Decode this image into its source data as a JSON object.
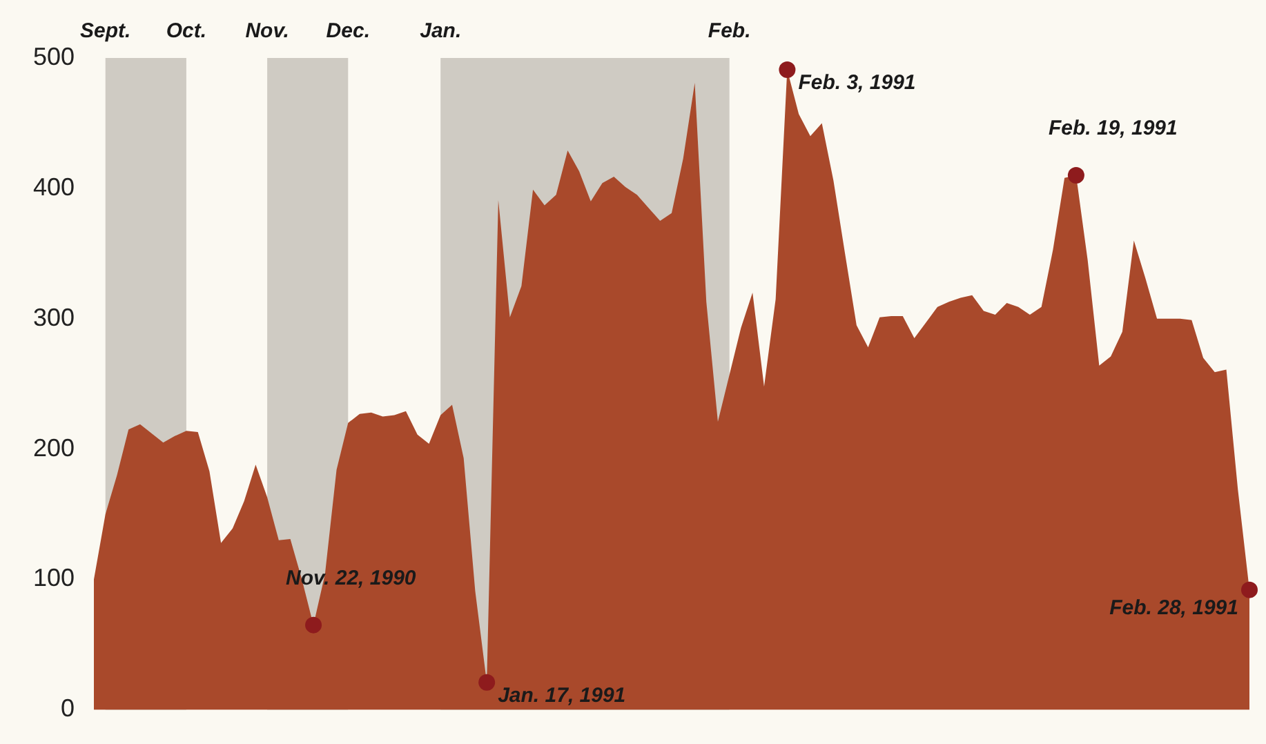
{
  "chart_data": {
    "type": "area",
    "grid": false,
    "legend": false,
    "ylim": [
      0,
      500
    ],
    "yticks": [
      0,
      100,
      200,
      300,
      400,
      500
    ],
    "categories": [
      null,
      "Sept.",
      null,
      null,
      null,
      null,
      null,
      null,
      "Oct.",
      null,
      null,
      null,
      null,
      null,
      null,
      "Nov.",
      null,
      null,
      null,
      null,
      null,
      null,
      "Dec.",
      null,
      null,
      null,
      null,
      null,
      null,
      null,
      "Jan.",
      null,
      null,
      null,
      null,
      null,
      null,
      null,
      null,
      null,
      null,
      null,
      null,
      null,
      null,
      null,
      null,
      null,
      null,
      null,
      null,
      null,
      null,
      null,
      null,
      "Feb.",
      null,
      null,
      null,
      null,
      null,
      null,
      null,
      null,
      null,
      null,
      null,
      null,
      null,
      null,
      null,
      null,
      null,
      null,
      null,
      null,
      null,
      null,
      null,
      null,
      null,
      null,
      null,
      null,
      null,
      null,
      null,
      null,
      null,
      null,
      null,
      null,
      null,
      null,
      null,
      null,
      null,
      null,
      null,
      null,
      null
    ],
    "bands": [
      {
        "axis": "x",
        "from": "Sept.",
        "to": "Oct.",
        "color": "#cfcbc3"
      },
      {
        "axis": "x",
        "from": "Nov.",
        "to": "Dec.",
        "color": "#cfcbc3"
      },
      {
        "axis": "x",
        "from": "Jan.",
        "to": "Feb.",
        "color": "#cfcbc3"
      }
    ],
    "series": [
      {
        "color": "#a9492b",
        "values": [
          100,
          150,
          180,
          215,
          219,
          212,
          205,
          210,
          214,
          213,
          183,
          128,
          139,
          160,
          188,
          163,
          130,
          131,
          100,
          65,
          104,
          184,
          220,
          227,
          228,
          225,
          226,
          229,
          211,
          204,
          226,
          234,
          193,
          91,
          21,
          391,
          301,
          325,
          399,
          387,
          395,
          429,
          413,
          390,
          404,
          409,
          401,
          395,
          385,
          375,
          381,
          423,
          481,
          313,
          221,
          257,
          293,
          320,
          248,
          315,
          491,
          457,
          440,
          450,
          406,
          350,
          295,
          278,
          301,
          302,
          302,
          285,
          297,
          309,
          313,
          316,
          318,
          306,
          303,
          312,
          309,
          303,
          309,
          353,
          408,
          410,
          345,
          264,
          271,
          290,
          360,
          331,
          300,
          300,
          300,
          299,
          270,
          259,
          261,
          169,
          92
        ]
      },
      {
        "type": "scatter",
        "color": "#8e1b1d",
        "values": [
          null,
          null,
          null,
          null,
          null,
          null,
          null,
          null,
          null,
          null,
          null,
          null,
          null,
          null,
          null,
          null,
          null,
          null,
          null,
          65,
          null,
          null,
          null,
          null,
          null,
          null,
          null,
          null,
          null,
          null,
          null,
          null,
          null,
          null,
          21,
          null,
          null,
          null,
          null,
          null,
          null,
          null,
          null,
          null,
          null,
          null,
          null,
          null,
          null,
          null,
          null,
          null,
          null,
          null,
          null,
          null,
          null,
          null,
          null,
          null,
          491,
          null,
          null,
          null,
          null,
          null,
          null,
          null,
          null,
          null,
          null,
          null,
          null,
          null,
          null,
          null,
          null,
          null,
          null,
          null,
          null,
          null,
          null,
          null,
          null,
          410,
          null,
          null,
          null,
          null,
          null,
          null,
          null,
          null,
          null,
          null,
          null,
          null,
          null,
          null,
          92
        ],
        "value_labels": [
          null,
          null,
          null,
          null,
          null,
          null,
          null,
          null,
          null,
          null,
          null,
          null,
          null,
          null,
          null,
          null,
          null,
          null,
          null,
          "Nov. 22, 1990",
          null,
          null,
          null,
          null,
          null,
          null,
          null,
          null,
          null,
          null,
          null,
          null,
          null,
          null,
          "Jan. 17, 1991",
          null,
          null,
          null,
          null,
          null,
          null,
          null,
          null,
          null,
          null,
          null,
          null,
          null,
          null,
          null,
          null,
          null,
          null,
          null,
          null,
          null,
          null,
          null,
          null,
          null,
          "Feb. 3, 1991",
          null,
          null,
          null,
          null,
          null,
          null,
          null,
          null,
          null,
          null,
          null,
          null,
          null,
          null,
          null,
          null,
          null,
          null,
          null,
          null,
          null,
          null,
          null,
          null,
          "Feb. 19, 1991",
          null,
          null,
          null,
          null,
          null,
          null,
          null,
          null,
          null,
          null,
          null,
          null,
          null,
          null,
          "Feb. 28, 1991"
        ]
      }
    ]
  }
}
